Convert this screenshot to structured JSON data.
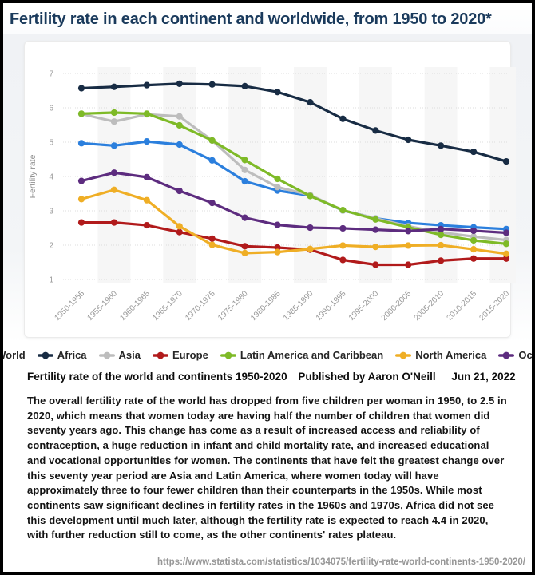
{
  "header": {
    "title": "Fertility rate in each continent and worldwide, from 1950 to 2020*"
  },
  "chart_data": {
    "type": "line",
    "title": "",
    "xlabel": "",
    "ylabel": "Fertility rate",
    "ylim": [
      1,
      7
    ],
    "yticks": [
      1,
      2,
      3,
      4,
      5,
      6,
      7
    ],
    "grid": "horizontal-dotted",
    "legend_position": "bottom",
    "plot_band_color": "#f6f6f6",
    "gridline_color": "#dcdcdc",
    "tick_label_color": "#9c9c9c",
    "axis_title_color": "#8f8f8f",
    "categories": [
      "1950-1955",
      "1955-1960",
      "1960-1965",
      "1965-1970",
      "1970-1975",
      "1975-1980",
      "1980-1985",
      "1985-1990",
      "1990-1995",
      "1995-2000",
      "2000-2005",
      "2005-2010",
      "2010-2015",
      "2015-2020"
    ],
    "series": [
      {
        "name": "World",
        "color": "#2b7fdd",
        "values": [
          4.97,
          4.9,
          5.02,
          4.93,
          4.47,
          3.86,
          3.59,
          3.44,
          3.01,
          2.78,
          2.65,
          2.58,
          2.52,
          2.47
        ]
      },
      {
        "name": "Africa",
        "color": "#182c44",
        "values": [
          6.57,
          6.61,
          6.66,
          6.7,
          6.68,
          6.63,
          6.46,
          6.16,
          5.68,
          5.34,
          5.07,
          4.9,
          4.72,
          4.44
        ]
      },
      {
        "name": "Asia",
        "color": "#bdbdbd",
        "values": [
          5.82,
          5.6,
          5.81,
          5.75,
          5.05,
          4.19,
          3.69,
          3.46,
          3.01,
          2.78,
          2.55,
          2.37,
          2.25,
          2.15
        ]
      },
      {
        "name": "Europe",
        "color": "#b11a1b",
        "values": [
          2.66,
          2.66,
          2.58,
          2.38,
          2.19,
          1.97,
          1.93,
          1.87,
          1.57,
          1.43,
          1.43,
          1.55,
          1.61,
          1.61
        ]
      },
      {
        "name": "Latin America and Caribbean",
        "color": "#7eba27",
        "values": [
          5.83,
          5.86,
          5.83,
          5.49,
          5.05,
          4.48,
          3.93,
          3.43,
          3.02,
          2.75,
          2.52,
          2.3,
          2.14,
          2.04
        ]
      },
      {
        "name": "North America",
        "color": "#efae25",
        "values": [
          3.34,
          3.61,
          3.31,
          2.55,
          2.01,
          1.77,
          1.8,
          1.89,
          1.99,
          1.95,
          1.99,
          2.0,
          1.88,
          1.75
        ]
      },
      {
        "name": "Oceania",
        "color": "#5d2c7f",
        "values": [
          3.87,
          4.11,
          3.98,
          3.58,
          3.23,
          2.8,
          2.59,
          2.51,
          2.49,
          2.45,
          2.41,
          2.47,
          2.42,
          2.36
        ]
      }
    ]
  },
  "caption": {
    "title": "Fertility rate of the world and continents 1950-2020",
    "published_by": "Published by Aaron O'Neill",
    "date": "Jun 21, 2022"
  },
  "article": {
    "text": "The overall fertility rate of the world has dropped from five children per woman in 1950, to 2.5 in 2020, which means that women today are having half the number of children that women did seventy years ago. This change has come as a result of increased access and reliability of contraception, a huge reduction in infant and child mortality rate, and increased educational and vocational opportunities for women. The continents that have felt the greatest change over this seventy year period are Asia and Latin America, where women today will have approximately three to four fewer children than their counterparts in the 1950s. While most continents saw significant declines in fertility rates in the 1960s and 1970s, Africa did not see this development until much later, although the fertility rate is expected to reach 4.4 in 2020, with further reduction still to come, as the other continents' rates plateau."
  },
  "source": {
    "url": "https://www.statista.com/statistics/1034075/fertility-rate-world-continents-1950-2020/"
  }
}
